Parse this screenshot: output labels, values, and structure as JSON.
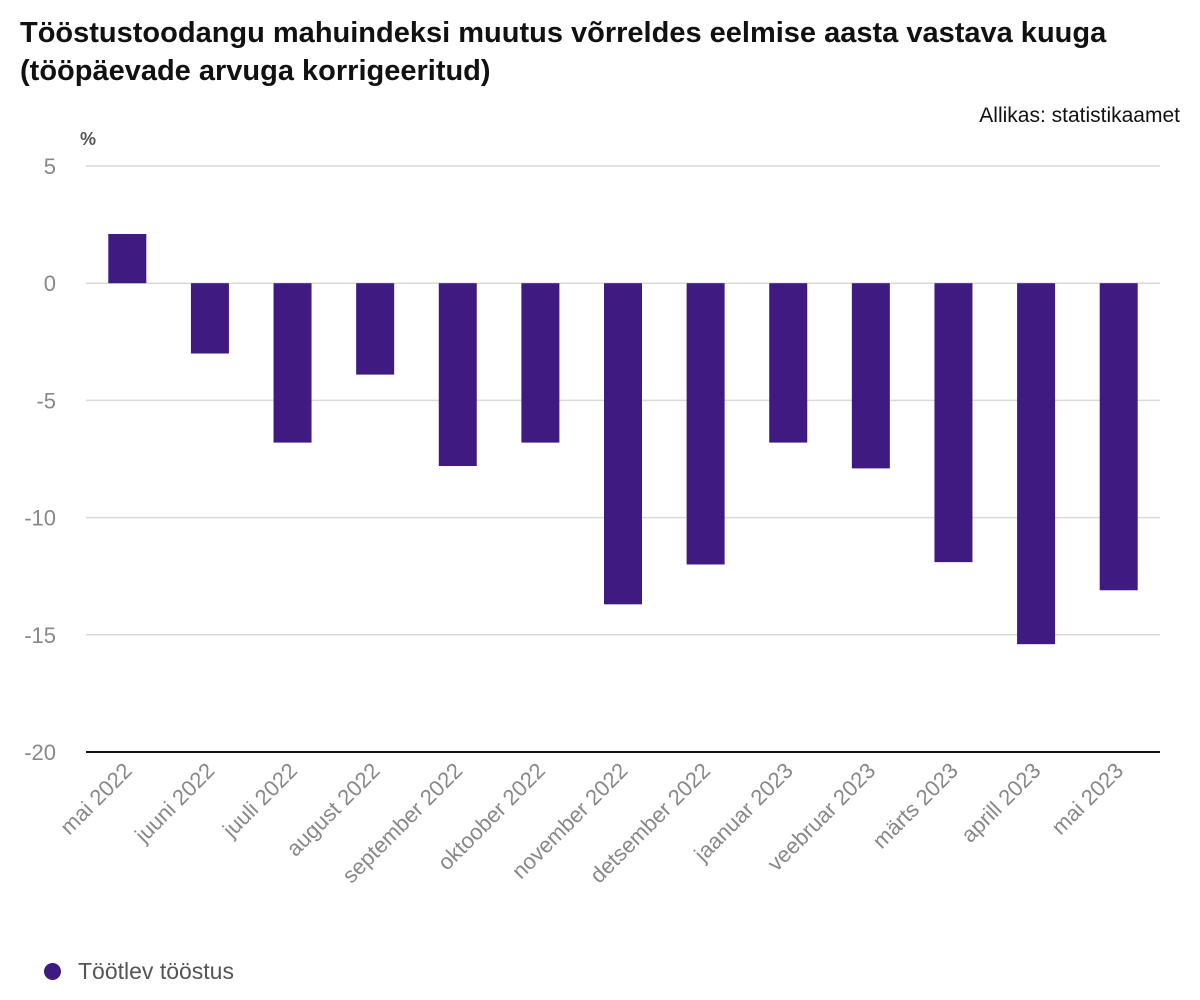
{
  "title": "Tööstustoodangu mahuindeksi muutus võrreldes eelmise aasta vastava kuuga (tööpäevade arvuga korrigeeritud)",
  "source": "Allikas: statistikaamet",
  "colors": {
    "bar": "#3f1a80",
    "grid": "#d9d9d9",
    "axis": "#111111",
    "tick_text": "#888888"
  },
  "chart_data": {
    "type": "bar",
    "title": "Tööstustoodangu mahuindeksi muutus võrreldes eelmise aasta vastava kuuga (tööpäevade arvuga korrigeeritud)",
    "ylabel": "%",
    "xlabel": "",
    "ylim": [
      -20,
      5
    ],
    "yticks": [
      5,
      0,
      -5,
      -10,
      -15,
      -20
    ],
    "grid": true,
    "legend_position": "bottom-left",
    "categories": [
      "mai 2022",
      "juuni 2022",
      "juuli 2022",
      "august 2022",
      "september 2022",
      "oktoober 2022",
      "november 2022",
      "detsember 2022",
      "jaanuar 2023",
      "veebruar 2023",
      "märts 2023",
      "aprill 2023",
      "mai 2023"
    ],
    "series": [
      {
        "name": "Töötlev tööstus",
        "values": [
          2.1,
          -3.0,
          -6.8,
          -3.9,
          -7.8,
          -6.8,
          -13.7,
          -12.0,
          -6.8,
          -7.9,
          -11.9,
          -15.4,
          -13.1
        ]
      }
    ]
  }
}
